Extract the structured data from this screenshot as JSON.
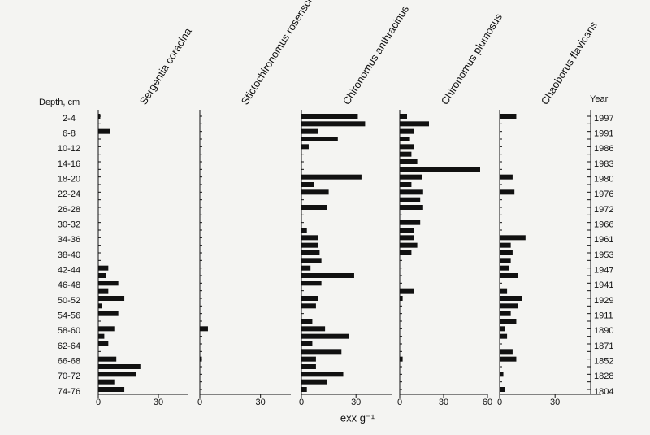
{
  "chart_data": {
    "type": "bar",
    "orientation": "horizontal",
    "y_label": "Depth, cm",
    "y2_label": "Year",
    "x_label": "exx g⁻¹",
    "categories": [
      "2-4",
      null,
      "6-8",
      null,
      "10-12",
      null,
      "14-16",
      null,
      "18-20",
      null,
      "22-24",
      null,
      "26-28",
      null,
      "30-32",
      null,
      "34-36",
      null,
      "38-40",
      null,
      "42-44",
      null,
      "46-48",
      null,
      "50-52",
      null,
      "54-56",
      null,
      "58-60",
      null,
      "62-64",
      null,
      "66-68",
      null,
      "70-72",
      null,
      "74-76"
    ],
    "y2categories": [
      "1997",
      null,
      "1991",
      null,
      "1986",
      null,
      "1983",
      null,
      "1980",
      null,
      "1976",
      null,
      "1972",
      null,
      "1966",
      null,
      "1961",
      null,
      "1953",
      null,
      "1947",
      null,
      "1941",
      null,
      "1929",
      null,
      "1911",
      null,
      "1890",
      null,
      "1871",
      null,
      "1852",
      null,
      "1828",
      null,
      "1804"
    ],
    "series": [
      {
        "name": "Sergentia coracina",
        "color": "#111111",
        "xlim": [
          0,
          45
        ],
        "xticks": [
          0,
          30
        ],
        "values": [
          1,
          0,
          6,
          0,
          0,
          0,
          0,
          0,
          0,
          0,
          0,
          0,
          0,
          0,
          0,
          0,
          0,
          0,
          0,
          0,
          5,
          4,
          10,
          5,
          13,
          2,
          10,
          0,
          8,
          3,
          5,
          0,
          9,
          21,
          19,
          8,
          13
        ]
      },
      {
        "name": "Stictochironomus rosenscholdi",
        "color": "#111111",
        "xlim": [
          0,
          45
        ],
        "xticks": [
          0,
          30
        ],
        "values": [
          0,
          0,
          0,
          0,
          0,
          0,
          0,
          0,
          0,
          0,
          0,
          0,
          0,
          0,
          0,
          0,
          0,
          0,
          0,
          0,
          0,
          0,
          0,
          0,
          0,
          0,
          0,
          0,
          4,
          0,
          0,
          0,
          1,
          0,
          0,
          0,
          0
        ]
      },
      {
        "name": "Chironomus anthracinus",
        "color": "#111111",
        "xlim": [
          0,
          50
        ],
        "xticks": [
          0,
          30
        ],
        "values": [
          31,
          35,
          9,
          20,
          4,
          0,
          0,
          0,
          33,
          7,
          15,
          0,
          14,
          0,
          0,
          3,
          9,
          9,
          10,
          11,
          5,
          29,
          11,
          0,
          9,
          8,
          0,
          6,
          13,
          26,
          6,
          22,
          8,
          8,
          23,
          14,
          3
        ]
      },
      {
        "name": "Chironomus plumosus",
        "color": "#111111",
        "xlim": [
          0,
          60
        ],
        "xticks": [
          0,
          30,
          60
        ],
        "values": [
          5,
          20,
          10,
          7,
          10,
          8,
          12,
          55,
          15,
          8,
          16,
          14,
          16,
          0,
          14,
          10,
          10,
          12,
          8,
          0,
          0,
          0,
          0,
          10,
          2,
          0,
          0,
          0,
          0,
          0,
          0,
          0,
          2,
          0,
          0,
          0,
          0
        ]
      },
      {
        "name": "Chaoborus flavicans",
        "color": "#111111",
        "xlim": [
          0,
          55
        ],
        "xticks": [
          0,
          30
        ],
        "values": [
          9,
          0,
          0,
          0,
          0,
          0,
          0,
          0,
          7,
          0,
          8,
          0,
          0,
          0,
          0,
          0,
          14,
          6,
          7,
          6,
          5,
          10,
          0,
          4,
          12,
          10,
          6,
          9,
          3,
          4,
          0,
          7,
          9,
          0,
          2,
          0,
          3
        ]
      }
    ]
  }
}
